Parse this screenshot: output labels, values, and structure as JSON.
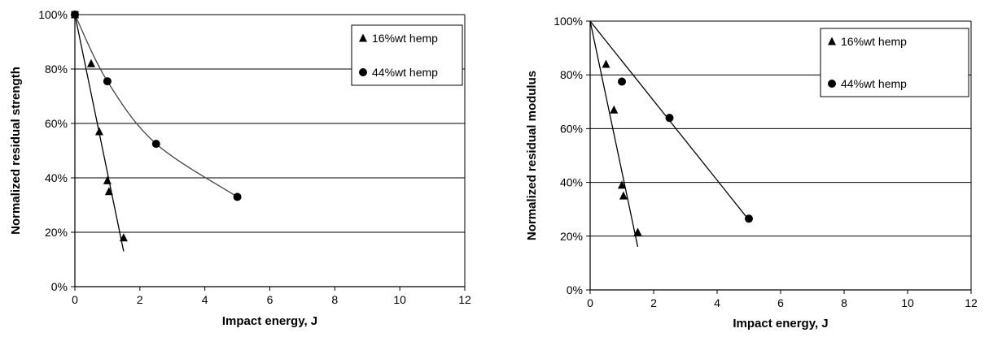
{
  "chart_data": [
    {
      "type": "scatter",
      "xlabel": "Impact energy, J",
      "ylabel": "Normalized residual strength",
      "xlim": [
        0,
        12
      ],
      "ylim": [
        0,
        100
      ],
      "x_ticks": [
        "0",
        "2",
        "4",
        "6",
        "8",
        "10",
        "12"
      ],
      "y_ticks": [
        "0%",
        "20%",
        "40%",
        "60%",
        "80%",
        "100%"
      ],
      "grid": "horizontal",
      "legend_position": "top-right",
      "series": [
        {
          "name": "16%wt hemp",
          "marker": "triangle",
          "points": [
            [
              0,
              100
            ],
            [
              0.5,
              82
            ],
            [
              0.75,
              57
            ],
            [
              1.0,
              39
            ],
            [
              1.05,
              35
            ],
            [
              1.5,
              18
            ]
          ],
          "trend": [
            [
              0,
              100
            ],
            [
              1.5,
              13
            ]
          ]
        },
        {
          "name": "44%wt hemp",
          "marker": "circle",
          "points": [
            [
              0,
              100
            ],
            [
              1.0,
              75.5
            ],
            [
              2.5,
              52.5
            ],
            [
              5.0,
              33
            ]
          ],
          "trend_curve": [
            [
              0,
              100
            ],
            [
              1.0,
              75.5
            ],
            [
              2.5,
              52.5
            ],
            [
              5.0,
              33
            ]
          ]
        }
      ]
    },
    {
      "type": "scatter",
      "xlabel": "Impact energy, J",
      "ylabel": "Normalized residual modulus",
      "xlim": [
        0,
        12
      ],
      "ylim": [
        0,
        100
      ],
      "x_ticks": [
        "0",
        "2",
        "4",
        "6",
        "8",
        "10",
        "12"
      ],
      "y_ticks": [
        "0%",
        "20%",
        "40%",
        "60%",
        "80%",
        "100%"
      ],
      "grid": "horizontal",
      "legend_position": "top-right",
      "series": [
        {
          "name": "16%wt hemp",
          "marker": "triangle",
          "points": [
            [
              0.5,
              84
            ],
            [
              0.75,
              67
            ],
            [
              1.0,
              39
            ],
            [
              1.05,
              35
            ],
            [
              1.5,
              21.5
            ]
          ],
          "trend": [
            [
              0,
              100
            ],
            [
              1.5,
              16
            ]
          ]
        },
        {
          "name": "44%wt hemp",
          "marker": "circle",
          "points": [
            [
              1.0,
              77.5
            ],
            [
              2.5,
              64
            ],
            [
              5.0,
              26.5
            ]
          ],
          "trend": [
            [
              0,
              100
            ],
            [
              5.0,
              26
            ]
          ]
        }
      ]
    }
  ]
}
